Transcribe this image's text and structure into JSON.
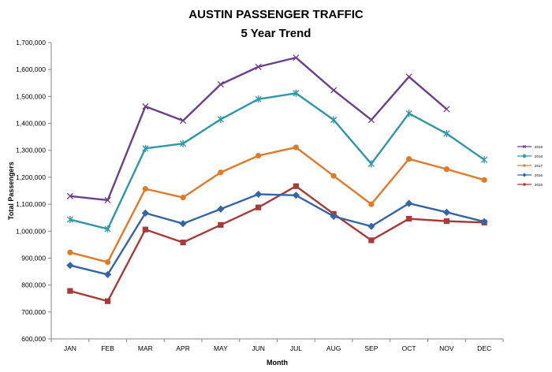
{
  "chart_data": {
    "type": "line",
    "title": "AUSTIN PASSENGER TRAFFIC",
    "subtitle": "5 Year Trend",
    "xlabel": "Month",
    "ylabel": "Total Passengers",
    "categories": [
      "JAN",
      "FEB",
      "MAR",
      "APR",
      "MAY",
      "JUN",
      "JUL",
      "AUG",
      "SEP",
      "OCT",
      "NOV",
      "DEC"
    ],
    "ylim": [
      600000,
      1700000
    ],
    "ytick_step": 100000,
    "grid": false,
    "legend_position": "right",
    "series": [
      {
        "name": "2019",
        "color": "#6b3f8c",
        "marker": "x",
        "values": [
          1130000,
          1115000,
          1463000,
          1410000,
          1545000,
          1610000,
          1644000,
          1523000,
          1413000,
          1573000,
          1453000,
          null
        ]
      },
      {
        "name": "2018",
        "color": "#2e98a8",
        "marker": "asterisk",
        "values": [
          1043000,
          1008000,
          1307000,
          1325000,
          1415000,
          1490000,
          1512000,
          1413000,
          1250000,
          1437000,
          1362000,
          1265000
        ]
      },
      {
        "name": "2017",
        "color": "#e07a28",
        "marker": "circle",
        "values": [
          921000,
          885000,
          1157000,
          1125000,
          1218000,
          1280000,
          1311000,
          1205000,
          1100000,
          1268000,
          1230000,
          1190000
        ]
      },
      {
        "name": "2016",
        "color": "#3466a3",
        "marker": "diamond",
        "values": [
          873000,
          839000,
          1067000,
          1028000,
          1082000,
          1137000,
          1133000,
          1055000,
          1018000,
          1103000,
          1070000,
          1035000
        ]
      },
      {
        "name": "2015",
        "color": "#a83a3a",
        "marker": "square",
        "values": [
          778000,
          740000,
          1006000,
          958000,
          1023000,
          1088000,
          1167000,
          1064000,
          966000,
          1046000,
          1037000,
          1032000
        ]
      }
    ]
  }
}
